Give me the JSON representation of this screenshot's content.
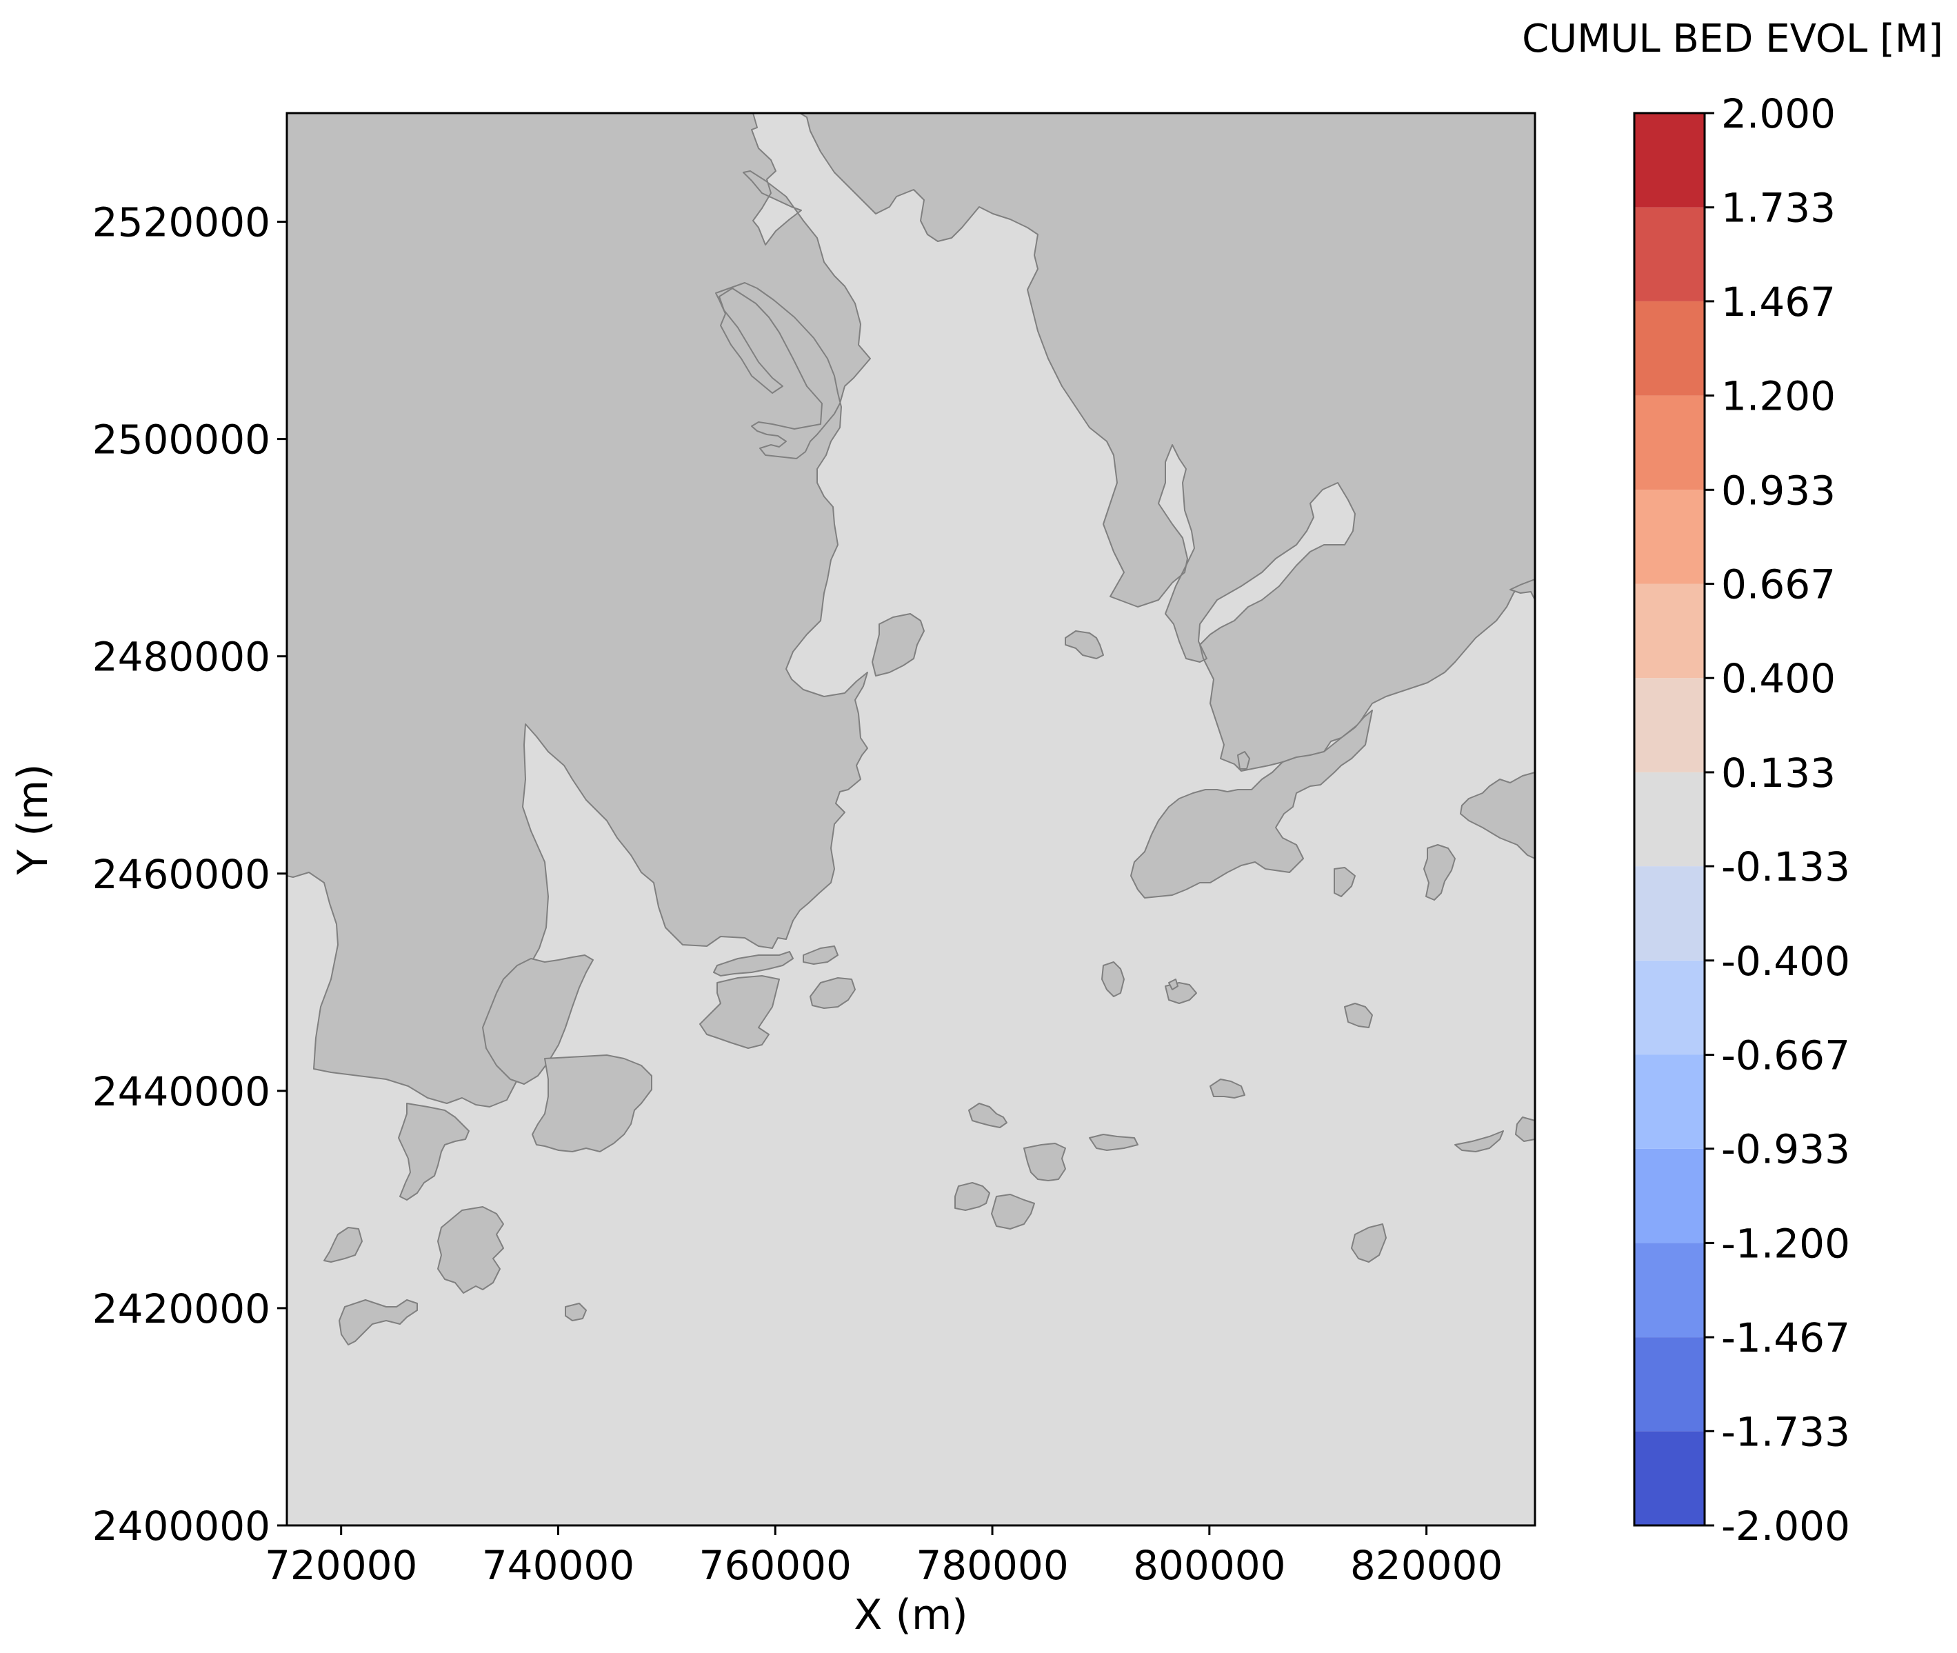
{
  "chart_data": {
    "type": "heatmap",
    "title": "",
    "xlabel": "X (m)",
    "ylabel": "Y (m)",
    "xlim": [
      715000,
      830000
    ],
    "ylim": [
      2400000,
      2530000
    ],
    "x_ticks": [
      720000,
      740000,
      760000,
      780000,
      800000,
      820000
    ],
    "x_tick_labels": [
      "720000",
      "740000",
      "760000",
      "780000",
      "800000",
      "820000"
    ],
    "y_ticks": [
      2400000,
      2420000,
      2440000,
      2460000,
      2480000,
      2500000,
      2520000
    ],
    "y_tick_labels": [
      "2400000",
      "2420000",
      "2440000",
      "2460000",
      "2480000",
      "2500000",
      "2520000"
    ],
    "grid": false,
    "field_value": 0.0,
    "field_color": "#dcdcdc",
    "land_color": "#bfbfbf",
    "land_edge_color": "#808080",
    "colorbar": {
      "title": "CUMUL BED EVOL [M]",
      "levels": [
        -2.0,
        -1.733,
        -1.467,
        -1.2,
        -0.933,
        -0.667,
        -0.4,
        -0.133,
        0.133,
        0.4,
        0.667,
        0.933,
        1.2,
        1.467,
        1.733,
        2.0
      ],
      "labels": [
        "-2.000",
        "-1.733",
        "-1.467",
        "-1.200",
        "-0.933",
        "-0.667",
        "-0.400",
        "-0.133",
        "0.133",
        "0.400",
        "0.667",
        "0.933",
        "1.200",
        "1.467",
        "1.733",
        "2.000"
      ],
      "colors": [
        "#4457cf",
        "#5b77e3",
        "#7191f1",
        "#87a9fb",
        "#9fbefe",
        "#b6cdfb",
        "#cad6f0",
        "#dcdcdc",
        "#ecd2c6",
        "#f4c0a8",
        "#f6a889",
        "#f08d6d",
        "#e47256",
        "#d4524b",
        "#bf2a31"
      ]
    }
  }
}
